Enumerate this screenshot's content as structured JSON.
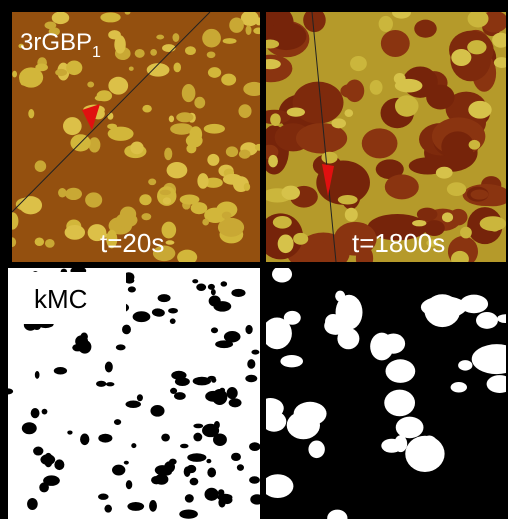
{
  "panels": {
    "top_left": {
      "label": "3rGBP",
      "label_subscript": "1",
      "time": "t=20s"
    },
    "top_right": {
      "time": "t=1800s"
    },
    "bottom_left": {
      "label": "kMC"
    }
  }
}
